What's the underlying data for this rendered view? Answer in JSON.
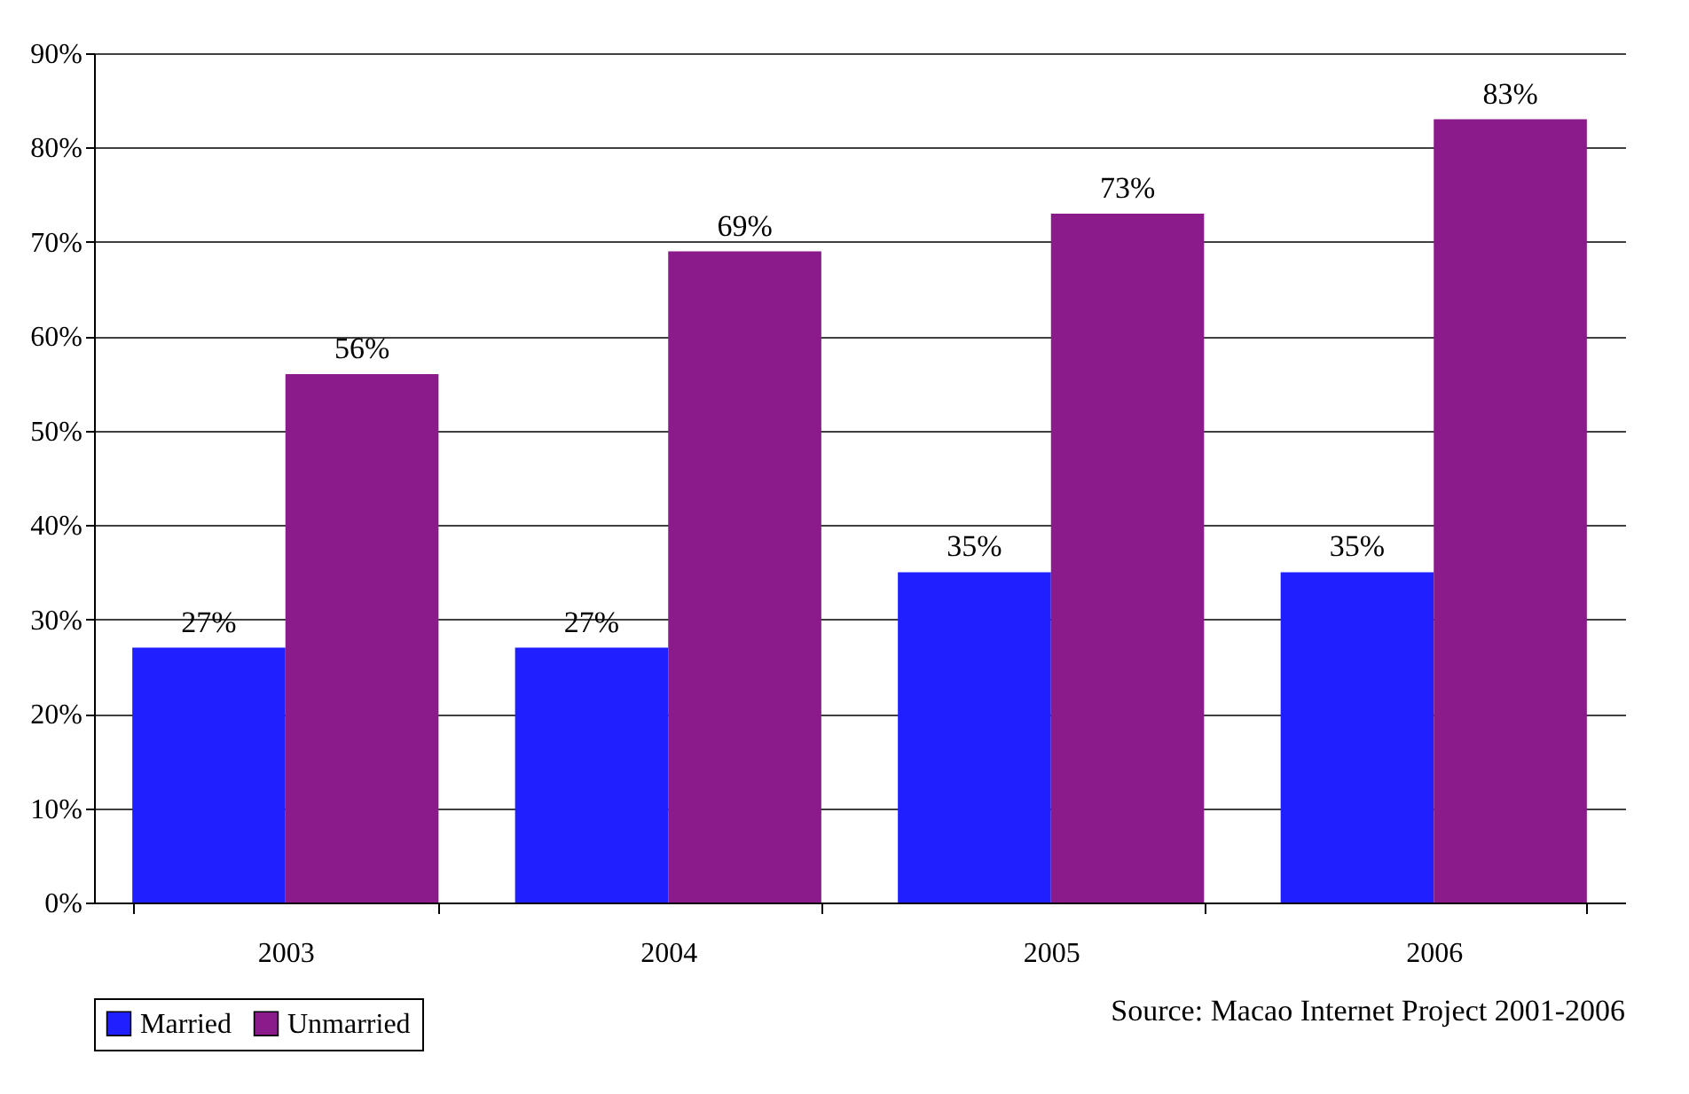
{
  "chart_data": {
    "type": "bar",
    "categories": [
      "2003",
      "2004",
      "2005",
      "2006"
    ],
    "series": [
      {
        "name": "Married",
        "color": "#1f1fff",
        "values": [
          27,
          27,
          35,
          35
        ],
        "value_labels": [
          "27%",
          "27%",
          "35%",
          "35%"
        ]
      },
      {
        "name": "Unmarried",
        "color": "#8b1a8b",
        "values": [
          56,
          69,
          73,
          83
        ],
        "value_labels": [
          "56%",
          "69%",
          "73%",
          "83%"
        ]
      }
    ],
    "ylim": [
      0,
      90
    ],
    "yticks": [
      {
        "value": 0,
        "label": "0%"
      },
      {
        "value": 10,
        "label": "10%"
      },
      {
        "value": 20,
        "label": "20%"
      },
      {
        "value": 30,
        "label": "30%"
      },
      {
        "value": 40,
        "label": "40%"
      },
      {
        "value": 50,
        "label": "50%"
      },
      {
        "value": 60,
        "label": "60%"
      },
      {
        "value": 70,
        "label": "70%"
      },
      {
        "value": 80,
        "label": "80%"
      },
      {
        "value": 90,
        "label": "90%"
      }
    ],
    "grid": "y",
    "legend": "bottom left",
    "annotations": [
      "Source: Macao Internet Project 2001-2006"
    ]
  }
}
